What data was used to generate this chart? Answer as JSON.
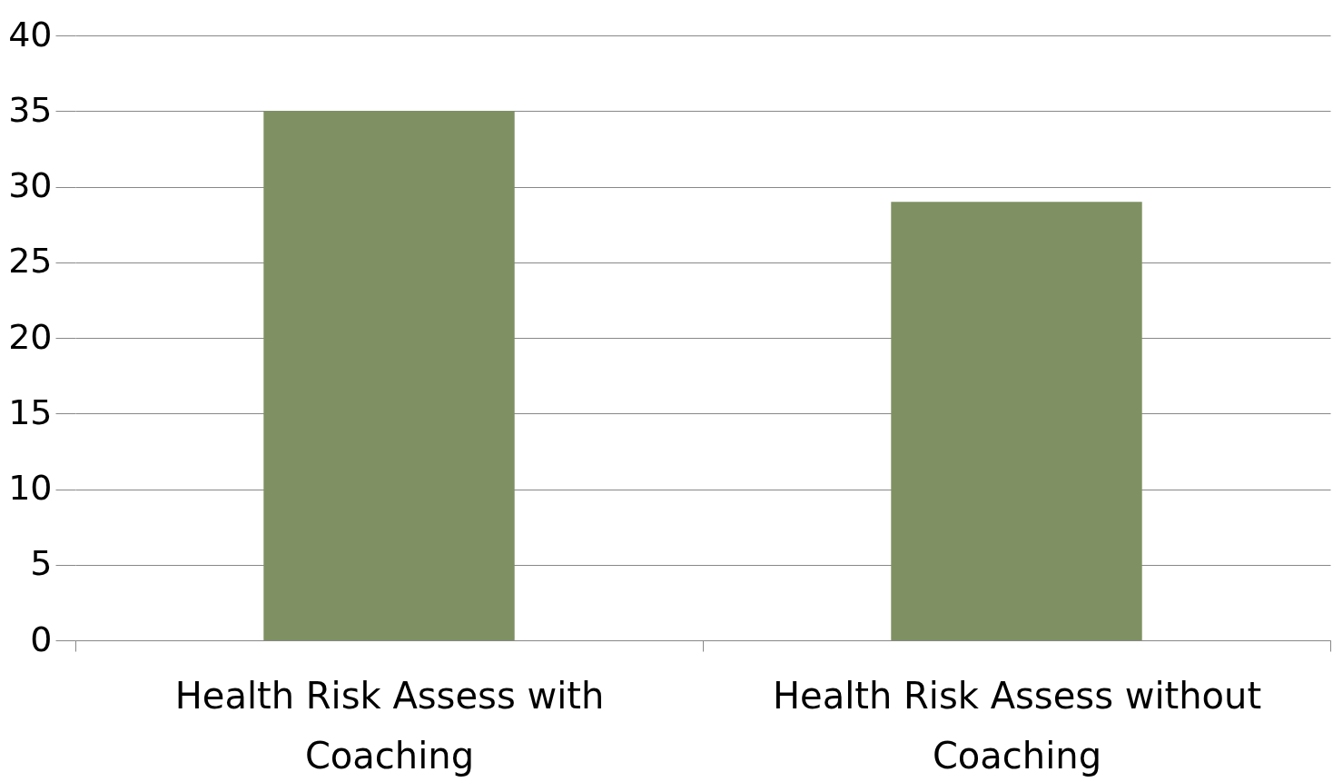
{
  "chart_data": {
    "type": "bar",
    "categories": [
      "Health Risk Assess with Coaching",
      "Health Risk Assess without Coaching"
    ],
    "values": [
      35,
      29
    ],
    "color": "#7f9162",
    "ylim": [
      0,
      40
    ],
    "yticks": [
      0,
      5,
      10,
      15,
      20,
      25,
      30,
      35,
      40
    ],
    "grid": "y"
  }
}
